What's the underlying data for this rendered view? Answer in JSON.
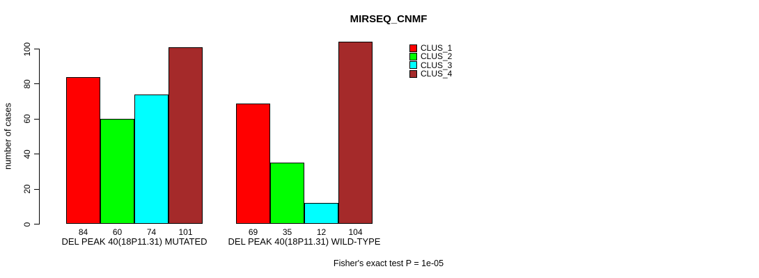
{
  "title": "MIRSEQ_CNMF",
  "chart_data": {
    "type": "bar",
    "title": "MIRSEQ_CNMF",
    "xlabel": "",
    "ylabel": "number of cases",
    "ylim": [
      0,
      100
    ],
    "yticks": [
      0,
      20,
      40,
      60,
      80,
      100
    ],
    "grid": false,
    "legend_position": "top-right",
    "bar_borders": "#000000",
    "categories": [
      "DEL PEAK 40(18P11.31) MUTATED",
      "DEL PEAK 40(18P11.31) WILD-TYPE"
    ],
    "series": [
      {
        "name": "CLUS_1",
        "color": "#FF0000",
        "values": [
          84,
          69
        ]
      },
      {
        "name": "CLUS_2",
        "color": "#00FF00",
        "values": [
          60,
          35
        ]
      },
      {
        "name": "CLUS_3",
        "color": "#00FFFF",
        "values": [
          74,
          12
        ]
      },
      {
        "name": "CLUS_4",
        "color": "#A52A2A",
        "values": [
          101,
          104
        ]
      }
    ],
    "show_bar_value_labels": true,
    "footnote": "Fisher's exact test P = 1e-05"
  }
}
